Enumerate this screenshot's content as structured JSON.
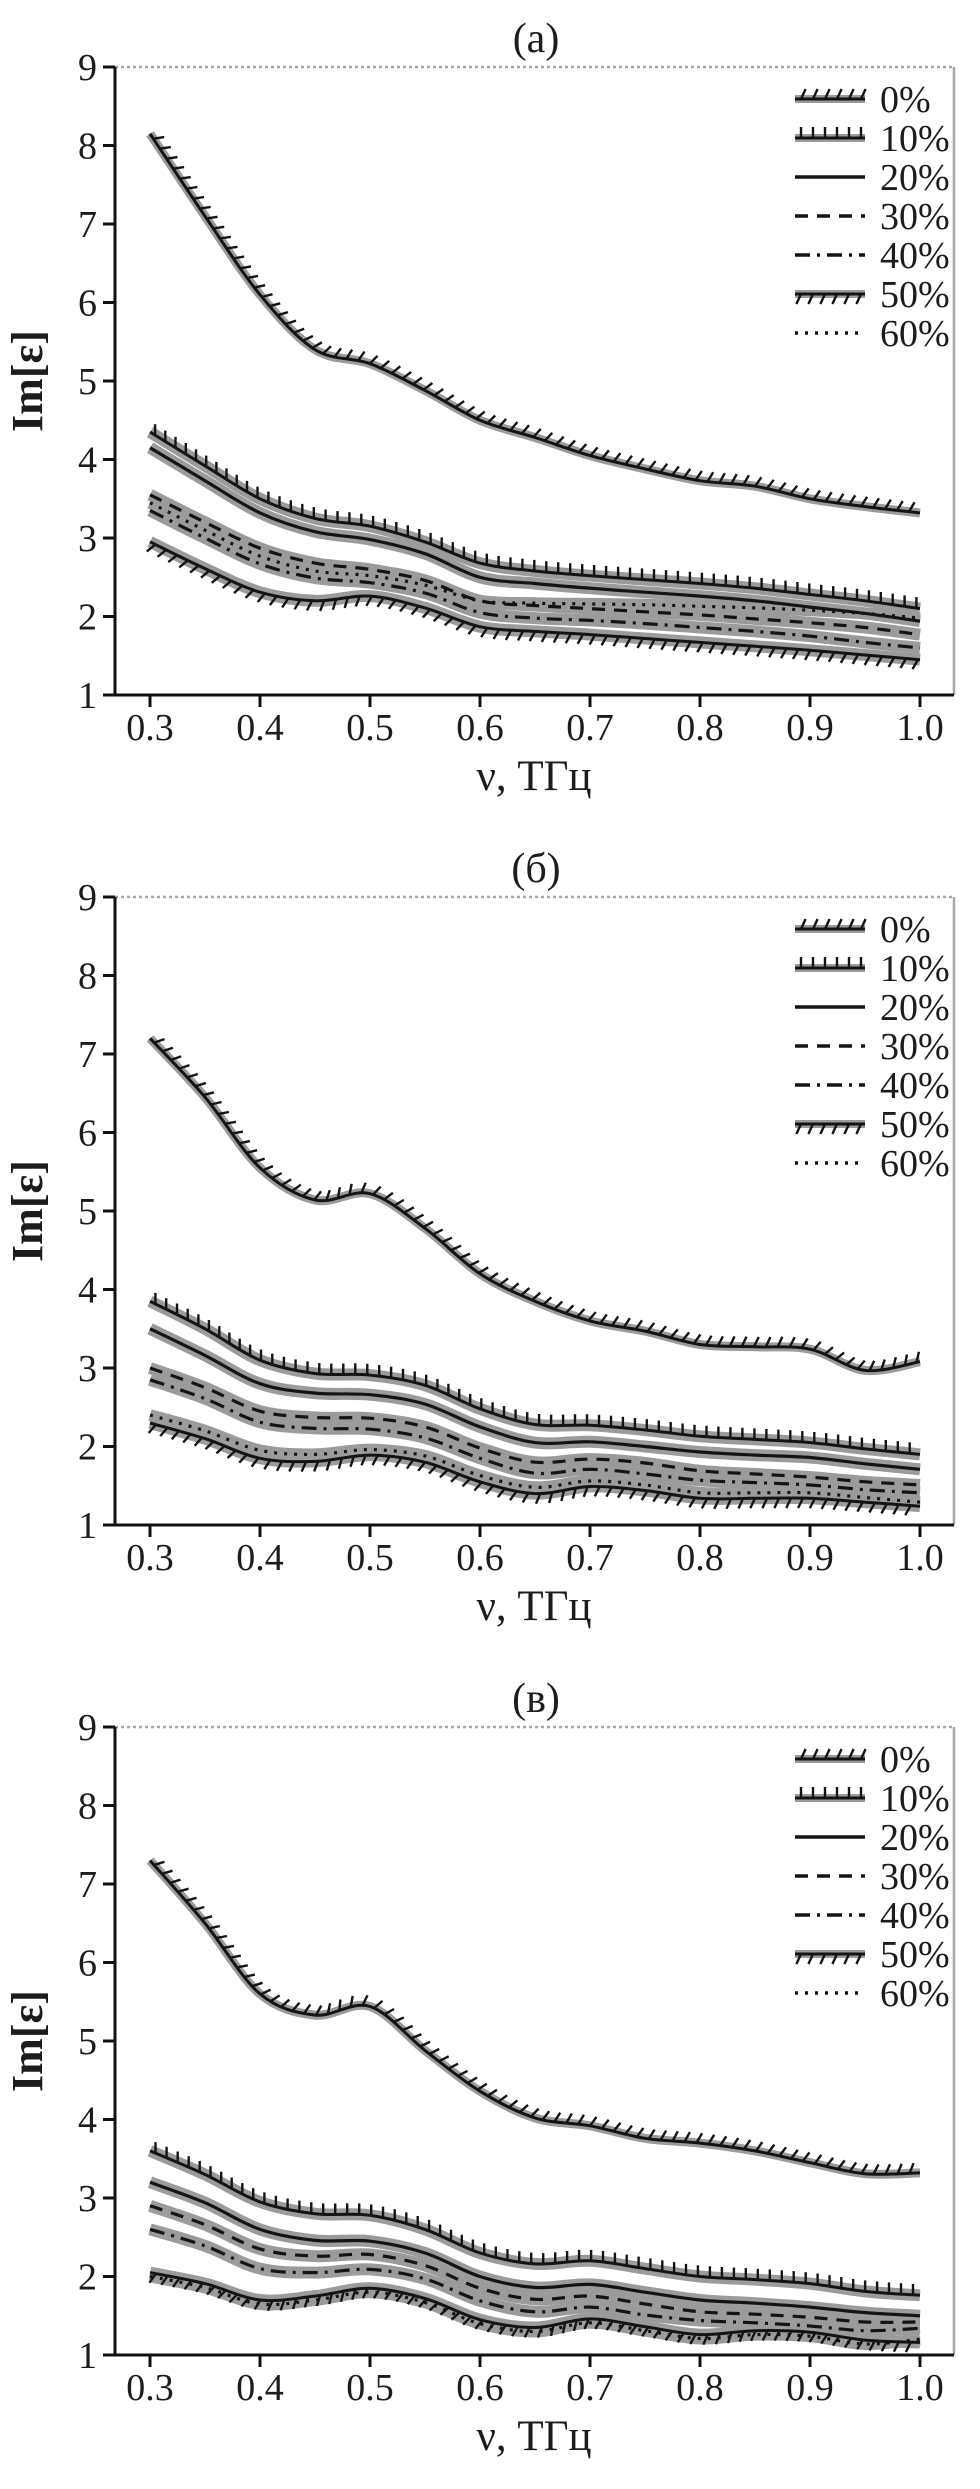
{
  "colors": {
    "line": "#141414",
    "band": "#9b9b9b",
    "frame_dark": "#111111",
    "frame_light": "#a6a6a6",
    "background": "#ffffff",
    "text": "#1c1c1c"
  },
  "chart_data": [
    {
      "type": "line",
      "title": "(а)",
      "xlabel": "ν, ТГц",
      "ylabel": "Im[ε]",
      "ylim": [
        1,
        9
      ],
      "xlim": [
        0.27,
        1.03
      ],
      "grid": false,
      "legend_position": "top-right",
      "yticks": [
        9,
        8,
        7,
        6,
        5,
        4,
        3,
        2,
        1
      ],
      "xticks": [
        0.3,
        0.4,
        0.5,
        0.6,
        0.7,
        0.8,
        0.9,
        1.0
      ],
      "xtick_labels": [
        "0.3",
        "0.4",
        "0.5",
        "0.6",
        "0.7",
        "0.8",
        "0.9",
        "1.0"
      ],
      "x": [
        0.3,
        0.35,
        0.4,
        0.45,
        0.5,
        0.55,
        0.6,
        0.65,
        0.7,
        0.75,
        0.8,
        0.85,
        0.9,
        0.95,
        1.0
      ],
      "series": [
        {
          "name": "0%",
          "style": "hatch-above",
          "values": [
            8.15,
            7.1,
            6.1,
            5.4,
            5.22,
            4.88,
            4.5,
            4.28,
            4.05,
            3.88,
            3.73,
            3.66,
            3.5,
            3.4,
            3.32
          ]
        },
        {
          "name": "10%",
          "style": "hatch-vert",
          "values": [
            4.35,
            3.92,
            3.5,
            3.25,
            3.15,
            2.95,
            2.68,
            2.58,
            2.52,
            2.47,
            2.42,
            2.36,
            2.28,
            2.2,
            2.1
          ]
        },
        {
          "name": "20%",
          "style": "solid",
          "values": [
            4.15,
            3.73,
            3.32,
            3.08,
            2.98,
            2.8,
            2.5,
            2.42,
            2.36,
            2.31,
            2.26,
            2.2,
            2.12,
            2.04,
            1.94
          ]
        },
        {
          "name": "30%",
          "style": "dashed",
          "values": [
            3.55,
            3.2,
            2.87,
            2.68,
            2.6,
            2.46,
            2.2,
            2.14,
            2.1,
            2.06,
            2.02,
            1.97,
            1.92,
            1.86,
            1.77
          ]
        },
        {
          "name": "40%",
          "style": "dashdot",
          "values": [
            3.35,
            3.0,
            2.67,
            2.49,
            2.43,
            2.3,
            2.05,
            1.98,
            1.95,
            1.91,
            1.86,
            1.81,
            1.75,
            1.67,
            1.6
          ]
        },
        {
          "name": "50%",
          "style": "hatch-below",
          "values": [
            2.95,
            2.61,
            2.31,
            2.2,
            2.26,
            2.11,
            1.87,
            1.81,
            1.77,
            1.72,
            1.67,
            1.62,
            1.57,
            1.51,
            1.45
          ]
        },
        {
          "name": "60%",
          "style": "dotted",
          "values": [
            3.45,
            3.1,
            2.77,
            2.58,
            2.52,
            2.4,
            2.2,
            2.17,
            2.16,
            2.15,
            2.13,
            2.11,
            2.08,
            2.04,
            1.98
          ]
        }
      ]
    },
    {
      "type": "line",
      "title": "(б)",
      "xlabel": "ν, ТГц",
      "ylabel": "Im[ε]",
      "ylim": [
        1,
        9
      ],
      "xlim": [
        0.27,
        1.03
      ],
      "grid": false,
      "legend_position": "top-right",
      "yticks": [
        9,
        8,
        7,
        6,
        5,
        4,
        3,
        2,
        1
      ],
      "xticks": [
        0.3,
        0.4,
        0.5,
        0.6,
        0.7,
        0.8,
        0.9,
        1.0
      ],
      "xtick_labels": [
        "0.3",
        "0.4",
        "0.5",
        "0.6",
        "0.7",
        "0.8",
        "0.9",
        "1.0"
      ],
      "x": [
        0.3,
        0.35,
        0.4,
        0.45,
        0.5,
        0.55,
        0.6,
        0.65,
        0.7,
        0.75,
        0.8,
        0.85,
        0.9,
        0.95,
        1.0
      ],
      "series": [
        {
          "name": "0%",
          "style": "hatch-above",
          "values": [
            7.2,
            6.45,
            5.55,
            5.14,
            5.22,
            4.78,
            4.2,
            3.85,
            3.6,
            3.47,
            3.3,
            3.27,
            3.24,
            2.97,
            3.08
          ]
        },
        {
          "name": "10%",
          "style": "hatch-vert",
          "values": [
            3.85,
            3.5,
            3.1,
            2.93,
            2.91,
            2.78,
            2.48,
            2.28,
            2.27,
            2.21,
            2.13,
            2.09,
            2.05,
            1.97,
            1.9
          ]
        },
        {
          "name": "20%",
          "style": "solid",
          "values": [
            3.5,
            3.16,
            2.8,
            2.68,
            2.66,
            2.54,
            2.25,
            2.05,
            2.06,
            2.0,
            1.93,
            1.89,
            1.86,
            1.78,
            1.71
          ]
        },
        {
          "name": "30%",
          "style": "dashed",
          "values": [
            3.0,
            2.75,
            2.45,
            2.37,
            2.36,
            2.25,
            1.98,
            1.8,
            1.84,
            1.79,
            1.69,
            1.65,
            1.61,
            1.55,
            1.51
          ]
        },
        {
          "name": "40%",
          "style": "dashdot",
          "values": [
            2.85,
            2.61,
            2.31,
            2.23,
            2.22,
            2.11,
            1.85,
            1.66,
            1.71,
            1.65,
            1.57,
            1.54,
            1.51,
            1.45,
            1.41
          ]
        },
        {
          "name": "50%",
          "style": "hatch-below",
          "values": [
            2.3,
            2.1,
            1.85,
            1.81,
            1.89,
            1.8,
            1.55,
            1.4,
            1.49,
            1.44,
            1.34,
            1.34,
            1.34,
            1.29,
            1.24
          ]
        },
        {
          "name": "60%",
          "style": "dotted",
          "values": [
            2.4,
            2.2,
            1.95,
            1.9,
            1.96,
            1.88,
            1.63,
            1.48,
            1.56,
            1.51,
            1.41,
            1.41,
            1.41,
            1.35,
            1.29
          ]
        }
      ]
    },
    {
      "type": "line",
      "title": "(в)",
      "xlabel": "ν, ТГц",
      "ylabel": "Im[ε]",
      "ylim": [
        1,
        9
      ],
      "xlim": [
        0.27,
        1.03
      ],
      "grid": false,
      "legend_position": "top-right",
      "yticks": [
        9,
        8,
        7,
        6,
        5,
        4,
        3,
        2,
        1
      ],
      "xticks": [
        0.3,
        0.4,
        0.5,
        0.6,
        0.7,
        0.8,
        0.9,
        1.0
      ],
      "xtick_labels": [
        "0.3",
        "0.4",
        "0.5",
        "0.6",
        "0.7",
        "0.8",
        "0.9",
        "1.0"
      ],
      "x": [
        0.3,
        0.35,
        0.4,
        0.45,
        0.5,
        0.55,
        0.6,
        0.65,
        0.7,
        0.75,
        0.8,
        0.85,
        0.9,
        0.95,
        1.0
      ],
      "series": [
        {
          "name": "0%",
          "style": "hatch-above",
          "values": [
            7.3,
            6.5,
            5.6,
            5.33,
            5.44,
            4.88,
            4.36,
            4.02,
            3.92,
            3.76,
            3.7,
            3.6,
            3.45,
            3.31,
            3.32
          ]
        },
        {
          "name": "10%",
          "style": "hatch-vert",
          "values": [
            3.6,
            3.3,
            2.95,
            2.8,
            2.78,
            2.6,
            2.3,
            2.16,
            2.2,
            2.1,
            2.0,
            1.96,
            1.91,
            1.81,
            1.76
          ]
        },
        {
          "name": "20%",
          "style": "solid",
          "values": [
            3.2,
            2.94,
            2.6,
            2.46,
            2.45,
            2.3,
            2.0,
            1.86,
            1.9,
            1.8,
            1.7,
            1.66,
            1.61,
            1.54,
            1.5
          ]
        },
        {
          "name": "30%",
          "style": "dashed",
          "values": [
            2.9,
            2.66,
            2.35,
            2.26,
            2.28,
            2.14,
            1.85,
            1.71,
            1.75,
            1.65,
            1.55,
            1.52,
            1.48,
            1.42,
            1.42
          ]
        },
        {
          "name": "40%",
          "style": "dashdot",
          "values": [
            2.6,
            2.39,
            2.1,
            2.05,
            2.09,
            1.97,
            1.69,
            1.55,
            1.61,
            1.51,
            1.44,
            1.41,
            1.37,
            1.31,
            1.34
          ]
        },
        {
          "name": "50%",
          "style": "hatch-below",
          "values": [
            2.05,
            1.91,
            1.7,
            1.75,
            1.85,
            1.72,
            1.45,
            1.35,
            1.46,
            1.36,
            1.26,
            1.31,
            1.29,
            1.19,
            1.16
          ]
        },
        {
          "name": "60%",
          "style": "dotted",
          "values": [
            2.0,
            1.86,
            1.65,
            1.7,
            1.8,
            1.67,
            1.4,
            1.3,
            1.41,
            1.31,
            1.21,
            1.26,
            1.24,
            1.14,
            1.2
          ]
        }
      ]
    }
  ]
}
